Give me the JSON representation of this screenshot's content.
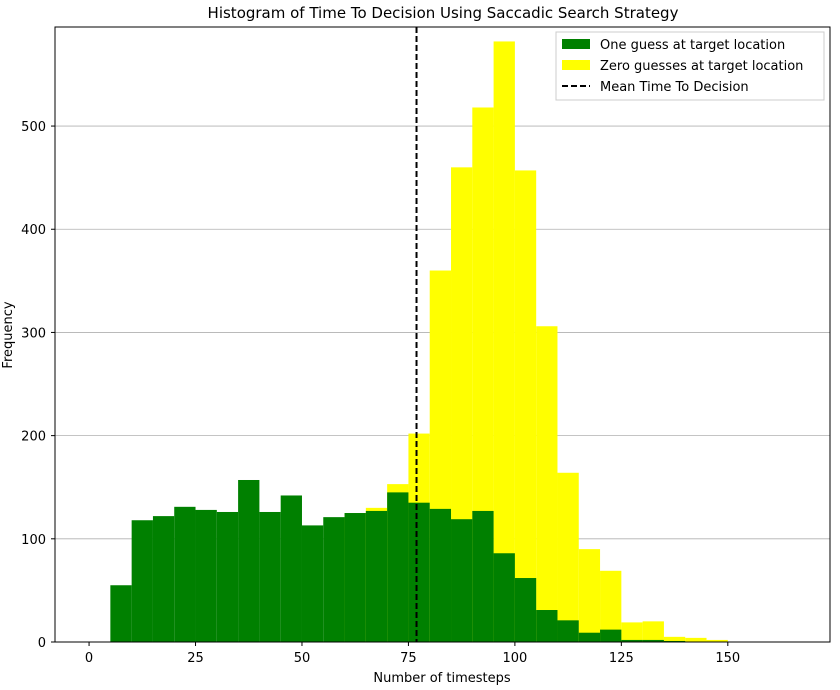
{
  "chart_data": {
    "type": "bar",
    "title": "Histogram of Time To Decision Using Saccadic Search Strategy",
    "xlabel": "Number of timesteps",
    "ylabel": "Frequency",
    "xlim": [
      -8,
      174
    ],
    "ylim": [
      0,
      596
    ],
    "xticks": [
      0,
      25,
      50,
      75,
      100,
      125,
      150
    ],
    "yticks": [
      0,
      100,
      200,
      300,
      400,
      500
    ],
    "grid": "y",
    "legend_position": "top-right",
    "bin_width": 5,
    "series": [
      {
        "name": "Zero guesses at target location",
        "color": "#ffff00",
        "bins": [
          {
            "x": 60,
            "value": 125
          },
          {
            "x": 65,
            "value": 130
          },
          {
            "x": 70,
            "value": 153
          },
          {
            "x": 75,
            "value": 202
          },
          {
            "x": 80,
            "value": 360
          },
          {
            "x": 85,
            "value": 460
          },
          {
            "x": 90,
            "value": 518
          },
          {
            "x": 95,
            "value": 582
          },
          {
            "x": 100,
            "value": 457
          },
          {
            "x": 105,
            "value": 306
          },
          {
            "x": 110,
            "value": 164
          },
          {
            "x": 115,
            "value": 90
          },
          {
            "x": 120,
            "value": 69
          },
          {
            "x": 125,
            "value": 19
          },
          {
            "x": 130,
            "value": 20
          },
          {
            "x": 135,
            "value": 5
          },
          {
            "x": 140,
            "value": 4
          },
          {
            "x": 145,
            "value": 2
          }
        ]
      },
      {
        "name": "One guess at target location",
        "color": "#008000",
        "bins": [
          {
            "x": 5,
            "value": 55
          },
          {
            "x": 10,
            "value": 118
          },
          {
            "x": 15,
            "value": 122
          },
          {
            "x": 20,
            "value": 131
          },
          {
            "x": 25,
            "value": 128
          },
          {
            "x": 30,
            "value": 126
          },
          {
            "x": 35,
            "value": 157
          },
          {
            "x": 40,
            "value": 126
          },
          {
            "x": 45,
            "value": 142
          },
          {
            "x": 50,
            "value": 113
          },
          {
            "x": 55,
            "value": 121
          },
          {
            "x": 60,
            "value": 125
          },
          {
            "x": 65,
            "value": 127
          },
          {
            "x": 70,
            "value": 145
          },
          {
            "x": 75,
            "value": 135
          },
          {
            "x": 80,
            "value": 129
          },
          {
            "x": 85,
            "value": 119
          },
          {
            "x": 90,
            "value": 127
          },
          {
            "x": 95,
            "value": 86
          },
          {
            "x": 100,
            "value": 62
          },
          {
            "x": 105,
            "value": 31
          },
          {
            "x": 110,
            "value": 21
          },
          {
            "x": 115,
            "value": 9
          },
          {
            "x": 120,
            "value": 12
          },
          {
            "x": 125,
            "value": 2
          },
          {
            "x": 130,
            "value": 2
          },
          {
            "x": 135,
            "value": 1
          }
        ]
      }
    ],
    "mean_line": {
      "name": "Mean Time To Decision",
      "x": 76.9,
      "color": "#000000",
      "style": "dashed"
    },
    "legend": [
      {
        "label": "One guess at target location",
        "color": "#008000",
        "kind": "patch"
      },
      {
        "label": "Zero guesses at target location",
        "color": "#ffff00",
        "kind": "patch"
      },
      {
        "label": "Mean Time To Decision",
        "color": "#000000",
        "kind": "dashed-line"
      }
    ]
  }
}
